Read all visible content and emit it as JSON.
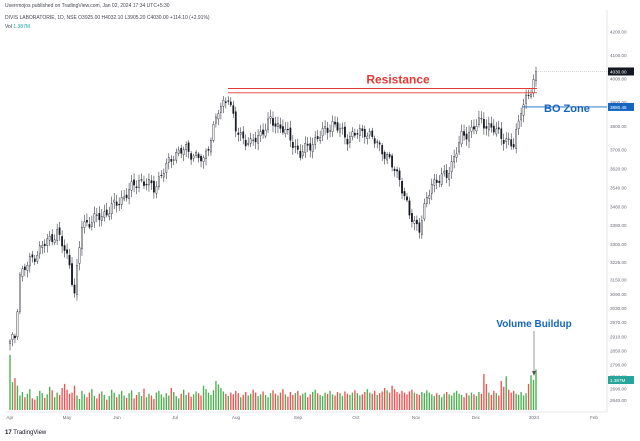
{
  "header": {
    "published_by": "Userrmojos published on TradingView.com, Jan 02, 2024 17:34 UTC+5:30",
    "instrument": "DIVIS LABORATORIE, 1D, NSE",
    "ohlc": "O3925.00 H4032.10 L3905.20 C4030.00 +114.10 (+2.91%)",
    "volume_label": "Vol",
    "volume_value": "1.387M"
  },
  "footer": {
    "logo_text": "TradingView",
    "logo_mark": "17"
  },
  "colors": {
    "up": "#26a69a",
    "down": "#ef5350",
    "candle": "#131722",
    "resistance": "#e53935",
    "bo_zone": "#1565c0",
    "annotation_text": "#1565c0",
    "vol_up": "#4caf50",
    "vol_down": "#ef5350"
  },
  "chart_data": {
    "type": "candlestick",
    "title": "DIVIS LABORATORIE, 1D, NSE",
    "ylim": [
      2590,
      4290
    ],
    "y_ticks": [
      "4200.00",
      "4100.00",
      "4000.00",
      "3900.00",
      "3800.00",
      "3700.00",
      "3620.00",
      "3540.00",
      "3460.00",
      "3380.00",
      "3300.00",
      "3225.00",
      "3150.00",
      "3090.00",
      "3030.00",
      "2970.00",
      "2910.00",
      "2850.00",
      "2790.00",
      "2740.00",
      "2690.00",
      "2640.00"
    ],
    "x_ticks": [
      "Apr",
      "May",
      "Jun",
      "Jul",
      "Aug",
      "Sep",
      "Oct",
      "Nov",
      "Dec",
      "2024",
      "Feb"
    ],
    "last_price_label": "4030.00",
    "bo_level_label": "3880.45",
    "volume_label": "1.387M",
    "annotations": {
      "resistance": "Resistance",
      "bo_zone": "BO Zone",
      "volume_buildup": "Volume Buildup"
    },
    "resistance_levels": [
      3958,
      3940
    ],
    "bo_level": 3880,
    "anchors": [
      [
        0,
        2880
      ],
      [
        2,
        2910
      ],
      [
        4,
        3170
      ],
      [
        9,
        3240
      ],
      [
        13,
        3290
      ],
      [
        19,
        3350
      ],
      [
        24,
        3220
      ],
      [
        26,
        3090
      ],
      [
        29,
        3380
      ],
      [
        37,
        3420
      ],
      [
        44,
        3480
      ],
      [
        52,
        3570
      ],
      [
        58,
        3540
      ],
      [
        66,
        3680
      ],
      [
        71,
        3700
      ],
      [
        78,
        3650
      ],
      [
        84,
        3860
      ],
      [
        88,
        3930
      ],
      [
        91,
        3780
      ],
      [
        97,
        3720
      ],
      [
        105,
        3820
      ],
      [
        110,
        3790
      ],
      [
        117,
        3680
      ],
      [
        123,
        3740
      ],
      [
        130,
        3810
      ],
      [
        136,
        3750
      ],
      [
        143,
        3780
      ],
      [
        150,
        3700
      ],
      [
        157,
        3580
      ],
      [
        161,
        3420
      ],
      [
        165,
        3370
      ],
      [
        170,
        3560
      ],
      [
        176,
        3590
      ],
      [
        182,
        3750
      ],
      [
        190,
        3820
      ],
      [
        198,
        3760
      ],
      [
        203,
        3710
      ],
      [
        206,
        3880
      ],
      [
        210,
        3940
      ],
      [
        212,
        4030
      ]
    ],
    "volume": [
      0.95,
      0.48,
      0.55,
      0.42,
      0.25,
      0.31,
      0.22,
      0.28,
      0.36,
      0.2,
      0.18,
      0.24,
      0.33,
      0.29,
      0.21,
      0.27,
      0.4,
      0.34,
      0.22,
      0.3,
      0.26,
      0.38,
      0.45,
      0.35,
      0.28,
      0.3,
      0.42,
      0.25,
      0.19,
      0.33,
      0.27,
      0.22,
      0.3,
      0.36,
      0.24,
      0.2,
      0.28,
      0.32,
      0.26,
      0.18,
      0.24,
      0.35,
      0.3,
      0.22,
      0.27,
      0.33,
      0.25,
      0.21,
      0.29,
      0.34,
      0.2,
      0.26,
      0.31,
      0.24,
      0.37,
      0.22,
      0.28,
      0.25,
      0.19,
      0.3,
      0.33,
      0.27,
      0.22,
      0.29,
      0.25,
      0.38,
      0.31,
      0.24,
      0.2,
      0.28,
      0.35,
      0.26,
      0.3,
      0.23,
      0.27,
      0.32,
      0.29,
      0.25,
      0.42,
      0.36,
      0.3,
      0.26,
      0.34,
      0.5,
      0.44,
      0.38,
      0.32,
      0.28,
      0.24,
      0.3,
      0.27,
      0.33,
      0.29,
      0.22,
      0.26,
      0.31,
      0.25,
      0.28,
      0.35,
      0.3,
      0.24,
      0.27,
      0.32,
      0.26,
      0.22,
      0.29,
      0.34,
      0.28,
      0.25,
      0.3,
      0.36,
      0.27,
      0.23,
      0.31,
      0.26,
      0.29,
      0.33,
      0.25,
      0.28,
      0.3,
      0.22,
      0.27,
      0.31,
      0.35,
      0.29,
      0.26,
      0.24,
      0.3,
      0.28,
      0.33,
      0.27,
      0.25,
      0.31,
      0.29,
      0.24,
      0.32,
      0.28,
      0.26,
      0.3,
      0.34,
      0.29,
      0.25,
      0.27,
      0.31,
      0.36,
      0.3,
      0.28,
      0.33,
      0.26,
      0.29,
      0.32,
      0.38,
      0.34,
      0.3,
      0.42,
      0.36,
      0.31,
      0.28,
      0.33,
      0.3,
      0.27,
      0.32,
      0.35,
      0.3,
      0.28,
      0.26,
      0.31,
      0.29,
      0.34,
      0.3,
      0.27,
      0.24,
      0.29,
      0.26,
      0.22,
      0.28,
      0.31,
      0.27,
      0.25,
      0.3,
      0.33,
      0.28,
      0.26,
      0.22,
      0.29,
      0.25,
      0.3,
      0.27,
      0.24,
      0.31,
      0.28,
      0.62,
      0.45,
      0.3,
      0.26,
      0.33,
      0.29,
      0.25,
      0.5,
      0.4,
      0.58,
      0.35,
      0.3,
      0.33,
      0.28,
      0.26,
      0.31,
      0.25,
      0.29,
      0.45,
      0.6,
      0.52,
      0.7
    ]
  }
}
